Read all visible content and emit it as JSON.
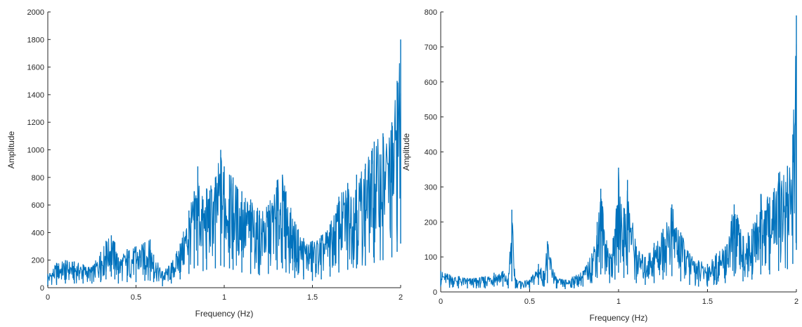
{
  "chart_data": [
    {
      "type": "line",
      "xlabel": "Frequency (Hz)",
      "ylabel": "Amplitude",
      "xlim": [
        0,
        2
      ],
      "ylim": [
        0,
        2000
      ],
      "xticks": [
        "0",
        "0.5",
        "1",
        "1.5",
        "2"
      ],
      "yticks": [
        "0",
        "200",
        "400",
        "600",
        "800",
        "1000",
        "1200",
        "1400",
        "1600",
        "1800",
        "2000"
      ],
      "grid": false,
      "color": "#0072bd",
      "series": [
        {
          "x": [
            0,
            0.05,
            0.1,
            0.15,
            0.2,
            0.25,
            0.3,
            0.33,
            0.36,
            0.38,
            0.4,
            0.45,
            0.5,
            0.55,
            0.58,
            0.6,
            0.65,
            0.7,
            0.75,
            0.8,
            0.83,
            0.85,
            0.88,
            0.9,
            0.95,
            0.98,
            1.0,
            1.03,
            1.05,
            1.1,
            1.15,
            1.2,
            1.25,
            1.3,
            1.33,
            1.35,
            1.4,
            1.45,
            1.5,
            1.55,
            1.6,
            1.65,
            1.7,
            1.75,
            1.8,
            1.85,
            1.9,
            1.95,
            1.98,
            2.0
          ],
          "y_upper": [
            100,
            180,
            200,
            190,
            170,
            150,
            260,
            340,
            380,
            330,
            220,
            280,
            300,
            330,
            350,
            240,
            120,
            180,
            320,
            560,
            700,
            880,
            640,
            720,
            800,
            1000,
            880,
            820,
            800,
            700,
            640,
            560,
            600,
            780,
            820,
            700,
            480,
            360,
            340,
            380,
            460,
            660,
            760,
            820,
            900,
            1060,
            1120,
            1200,
            1500,
            1800
          ],
          "y_lower": [
            10,
            20,
            30,
            30,
            30,
            30,
            40,
            60,
            80,
            60,
            30,
            40,
            40,
            50,
            50,
            40,
            10,
            30,
            60,
            100,
            140,
            160,
            120,
            130,
            140,
            160,
            150,
            140,
            130,
            110,
            100,
            90,
            100,
            130,
            140,
            110,
            70,
            60,
            50,
            60,
            80,
            110,
            130,
            140,
            160,
            180,
            200,
            220,
            260,
            320
          ]
        }
      ]
    },
    {
      "type": "line",
      "xlabel": "Frequency (Hz)",
      "ylabel": "Amplitude",
      "xlim": [
        0,
        2
      ],
      "ylim": [
        0,
        800
      ],
      "xticks": [
        "0",
        "0.5",
        "1",
        "1.5",
        "2"
      ],
      "yticks": [
        "0",
        "100",
        "200",
        "300",
        "400",
        "500",
        "600",
        "700",
        "800"
      ],
      "grid": false,
      "color": "#0072bd",
      "series": [
        {
          "x": [
            0,
            0.05,
            0.1,
            0.15,
            0.2,
            0.25,
            0.3,
            0.35,
            0.38,
            0.4,
            0.42,
            0.45,
            0.5,
            0.55,
            0.58,
            0.6,
            0.65,
            0.7,
            0.75,
            0.8,
            0.85,
            0.88,
            0.9,
            0.95,
            0.98,
            1.0,
            1.03,
            1.05,
            1.1,
            1.15,
            1.2,
            1.25,
            1.3,
            1.35,
            1.4,
            1.45,
            1.5,
            1.55,
            1.6,
            1.65,
            1.7,
            1.75,
            1.8,
            1.85,
            1.9,
            1.95,
            1.98,
            2.0
          ],
          "y_upper": [
            60,
            50,
            45,
            40,
            40,
            45,
            55,
            60,
            40,
            235,
            40,
            30,
            35,
            80,
            60,
            145,
            40,
            35,
            45,
            60,
            110,
            200,
            295,
            110,
            180,
            355,
            240,
            320,
            130,
            100,
            140,
            180,
            250,
            170,
            110,
            90,
            80,
            110,
            130,
            250,
            160,
            180,
            280,
            270,
            340,
            360,
            450,
            790
          ],
          "y_lower": [
            15,
            12,
            10,
            10,
            10,
            10,
            15,
            15,
            10,
            30,
            10,
            8,
            8,
            20,
            15,
            25,
            10,
            8,
            10,
            15,
            25,
            40,
            50,
            25,
            35,
            55,
            40,
            50,
            25,
            20,
            25,
            35,
            45,
            30,
            20,
            15,
            15,
            20,
            25,
            45,
            30,
            35,
            50,
            50,
            60,
            65,
            80,
            120
          ]
        }
      ]
    }
  ]
}
